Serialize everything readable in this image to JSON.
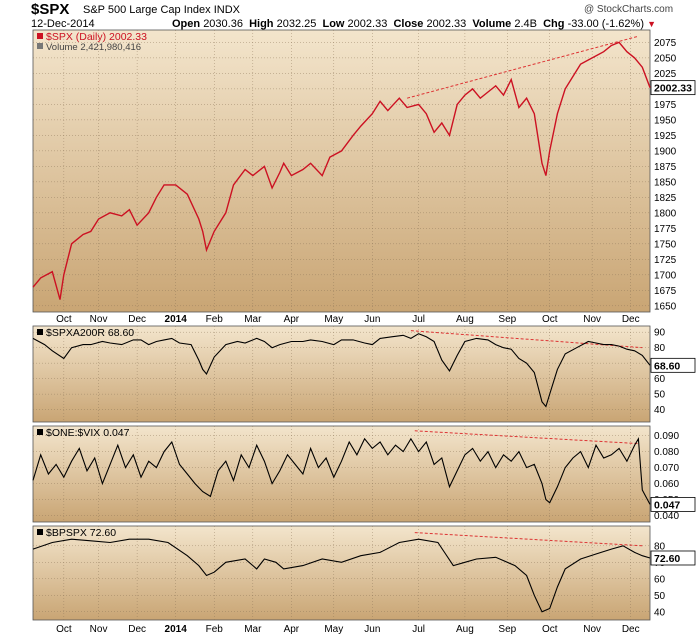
{
  "header": {
    "symbol": "$SPX",
    "name": "S&P 500 Large Cap Index",
    "exchange": "INDX",
    "date": "12-Dec-2014",
    "open_label": "Open",
    "open": "2030.36",
    "high_label": "High",
    "high": "2032.25",
    "low_label": "Low",
    "low": "2002.33",
    "close_label": "Close",
    "close": "2002.33",
    "volume_label": "Volume",
    "volume": "2.4B",
    "chg_label": "Chg",
    "chg": "-33.00 (-1.62%)",
    "brand": "@ StockCharts.com"
  },
  "colors": {
    "panel_bg_top": "#f3e5cc",
    "panel_bg_bottom": "#c9a574",
    "price_line": "#cc1122",
    "indicator_line": "#000000",
    "trendline": "#dd3333",
    "vol_up": "#e8a9a9",
    "vol_down": "#a8a8a8"
  },
  "chart_data": [
    {
      "type": "line",
      "title": "$SPX (Daily) 2002.33",
      "legend": "Volume 2,421,980,416",
      "x_labels": [
        "Oct",
        "Nov",
        "Dec",
        "2014",
        "Feb",
        "Mar",
        "Apr",
        "May",
        "Jun",
        "Jul",
        "Aug",
        "Sep",
        "Oct",
        "Nov",
        "Dec"
      ],
      "x_positions": [
        0.08,
        0.17,
        0.27,
        0.37,
        0.47,
        0.57,
        0.67,
        0.78,
        0.88,
        1.0,
        1.12,
        1.23,
        1.34,
        1.45,
        1.55
      ],
      "ylim": [
        1640,
        2095
      ],
      "y_ticks": [
        1650,
        1675,
        1700,
        1725,
        1750,
        1775,
        1800,
        1825,
        1850,
        1875,
        1900,
        1925,
        1950,
        1975,
        2000,
        2025,
        2050,
        2075
      ],
      "last_value": "2002.33",
      "series": [
        {
          "name": "$SPX",
          "x": [
            0,
            0.02,
            0.05,
            0.07,
            0.08,
            0.1,
            0.13,
            0.15,
            0.17,
            0.2,
            0.23,
            0.25,
            0.27,
            0.3,
            0.32,
            0.34,
            0.37,
            0.4,
            0.43,
            0.44,
            0.45,
            0.47,
            0.5,
            0.52,
            0.55,
            0.57,
            0.6,
            0.62,
            0.64,
            0.65,
            0.67,
            0.7,
            0.72,
            0.75,
            0.77,
            0.8,
            0.83,
            0.85,
            0.88,
            0.9,
            0.92,
            0.95,
            0.97,
            1.0,
            1.02,
            1.04,
            1.06,
            1.08,
            1.1,
            1.12,
            1.14,
            1.16,
            1.18,
            1.2,
            1.22,
            1.24,
            1.26,
            1.28,
            1.3,
            1.32,
            1.33,
            1.34,
            1.36,
            1.38,
            1.4,
            1.42,
            1.45,
            1.48,
            1.5,
            1.52,
            1.54,
            1.56,
            1.58,
            1.6
          ],
          "y": [
            1680,
            1695,
            1705,
            1660,
            1700,
            1750,
            1765,
            1770,
            1790,
            1800,
            1795,
            1805,
            1780,
            1800,
            1825,
            1845,
            1845,
            1830,
            1790,
            1770,
            1740,
            1770,
            1800,
            1845,
            1870,
            1860,
            1875,
            1840,
            1865,
            1880,
            1860,
            1870,
            1880,
            1860,
            1890,
            1900,
            1925,
            1940,
            1960,
            1980,
            1965,
            1985,
            1970,
            1975,
            1960,
            1930,
            1945,
            1925,
            1975,
            1990,
            2000,
            1985,
            1995,
            2005,
            1990,
            2015,
            1970,
            1985,
            1960,
            1880,
            1860,
            1900,
            1960,
            2000,
            2020,
            2040,
            2050,
            2060,
            2070,
            2075,
            2060,
            2050,
            2035,
            2002
          ]
        }
      ],
      "trendline": {
        "x": [
          0.97,
          1.57
        ],
        "y": [
          1985,
          2085
        ]
      }
    },
    {
      "type": "line",
      "title": "$SPXA200R 68.60",
      "ylim": [
        32,
        94
      ],
      "y_ticks": [
        40,
        50,
        60,
        70,
        80,
        90
      ],
      "last_value": "68.60",
      "series": [
        {
          "name": "$SPXA200R",
          "x": [
            0,
            0.03,
            0.05,
            0.08,
            0.1,
            0.13,
            0.15,
            0.18,
            0.2,
            0.23,
            0.26,
            0.28,
            0.3,
            0.32,
            0.34,
            0.36,
            0.38,
            0.41,
            0.43,
            0.44,
            0.45,
            0.47,
            0.5,
            0.53,
            0.55,
            0.58,
            0.6,
            0.62,
            0.64,
            0.67,
            0.7,
            0.72,
            0.75,
            0.78,
            0.8,
            0.83,
            0.86,
            0.88,
            0.9,
            0.93,
            0.96,
            0.98,
            1.0,
            1.02,
            1.04,
            1.06,
            1.08,
            1.1,
            1.12,
            1.15,
            1.18,
            1.2,
            1.22,
            1.24,
            1.26,
            1.28,
            1.3,
            1.32,
            1.33,
            1.34,
            1.36,
            1.38,
            1.41,
            1.44,
            1.46,
            1.48,
            1.5,
            1.52,
            1.54,
            1.56,
            1.58,
            1.6
          ],
          "y": [
            86,
            82,
            78,
            73,
            80,
            82,
            82,
            84,
            83,
            82,
            85,
            85,
            82,
            84,
            85,
            86,
            83,
            82,
            72,
            66,
            63,
            74,
            82,
            84,
            83,
            86,
            84,
            80,
            82,
            84,
            84,
            85,
            84,
            82,
            85,
            85,
            83,
            82,
            86,
            87,
            88,
            86,
            89,
            87,
            84,
            72,
            65,
            75,
            84,
            86,
            85,
            82,
            80,
            79,
            73,
            70,
            64,
            45,
            42,
            50,
            66,
            76,
            80,
            84,
            83,
            82,
            82,
            81,
            79,
            78,
            75,
            68.6
          ]
        }
      ],
      "trendline": {
        "x": [
          0.98,
          1.58
        ],
        "y": [
          91,
          80
        ]
      }
    },
    {
      "type": "line",
      "title": "$ONE:$VIX 0.047",
      "ylim": [
        0.036,
        0.096
      ],
      "y_ticks": [
        0.04,
        0.05,
        0.06,
        0.07,
        0.08,
        0.09
      ],
      "y_tick_labels": [
        "0.040",
        "0.050",
        "0.060",
        "0.070",
        "0.080",
        "0.090"
      ],
      "last_value": "0.047",
      "series": [
        {
          "name": "$ONE:$VIX",
          "x": [
            0,
            0.02,
            0.04,
            0.06,
            0.08,
            0.1,
            0.12,
            0.14,
            0.16,
            0.18,
            0.2,
            0.22,
            0.24,
            0.26,
            0.28,
            0.3,
            0.32,
            0.34,
            0.36,
            0.38,
            0.4,
            0.42,
            0.44,
            0.46,
            0.48,
            0.5,
            0.52,
            0.54,
            0.56,
            0.58,
            0.6,
            0.62,
            0.64,
            0.66,
            0.68,
            0.7,
            0.72,
            0.74,
            0.76,
            0.78,
            0.8,
            0.82,
            0.84,
            0.86,
            0.88,
            0.9,
            0.92,
            0.94,
            0.96,
            0.98,
            1.0,
            1.02,
            1.04,
            1.06,
            1.08,
            1.1,
            1.12,
            1.14,
            1.16,
            1.18,
            1.2,
            1.22,
            1.24,
            1.26,
            1.28,
            1.3,
            1.32,
            1.33,
            1.34,
            1.36,
            1.38,
            1.4,
            1.42,
            1.44,
            1.46,
            1.48,
            1.5,
            1.52,
            1.54,
            1.56,
            1.57,
            1.58,
            1.6
          ],
          "y": [
            0.062,
            0.078,
            0.066,
            0.072,
            0.064,
            0.074,
            0.082,
            0.068,
            0.076,
            0.06,
            0.072,
            0.084,
            0.07,
            0.078,
            0.064,
            0.074,
            0.07,
            0.08,
            0.086,
            0.072,
            0.066,
            0.06,
            0.055,
            0.052,
            0.068,
            0.074,
            0.062,
            0.078,
            0.07,
            0.084,
            0.074,
            0.06,
            0.068,
            0.078,
            0.072,
            0.066,
            0.082,
            0.07,
            0.076,
            0.064,
            0.074,
            0.086,
            0.078,
            0.088,
            0.082,
            0.086,
            0.078,
            0.084,
            0.08,
            0.088,
            0.08,
            0.086,
            0.072,
            0.076,
            0.058,
            0.068,
            0.078,
            0.082,
            0.074,
            0.08,
            0.07,
            0.078,
            0.074,
            0.08,
            0.07,
            0.072,
            0.06,
            0.05,
            0.048,
            0.058,
            0.07,
            0.076,
            0.08,
            0.07,
            0.084,
            0.076,
            0.078,
            0.082,
            0.074,
            0.084,
            0.088,
            0.056,
            0.047
          ]
        }
      ],
      "trendline": {
        "x": [
          0.99,
          1.57
        ],
        "y": [
          0.093,
          0.085
        ]
      }
    },
    {
      "type": "line",
      "title": "$BPSPX 72.60",
      "ylim": [
        35,
        92
      ],
      "y_ticks": [
        40,
        50,
        60,
        70,
        80
      ],
      "last_value": "72.60",
      "series": [
        {
          "name": "$BPSPX",
          "x": [
            0,
            0.05,
            0.1,
            0.15,
            0.2,
            0.25,
            0.3,
            0.35,
            0.4,
            0.43,
            0.45,
            0.47,
            0.5,
            0.55,
            0.58,
            0.6,
            0.63,
            0.65,
            0.7,
            0.75,
            0.8,
            0.85,
            0.9,
            0.95,
            1.0,
            1.05,
            1.07,
            1.09,
            1.12,
            1.15,
            1.2,
            1.25,
            1.28,
            1.3,
            1.32,
            1.34,
            1.36,
            1.38,
            1.42,
            1.46,
            1.5,
            1.53,
            1.56,
            1.58,
            1.6
          ],
          "y": [
            78,
            82,
            84,
            83,
            82,
            84,
            84,
            82,
            74,
            68,
            62,
            64,
            70,
            72,
            66,
            72,
            70,
            66,
            68,
            72,
            70,
            74,
            76,
            82,
            84,
            82,
            75,
            68,
            70,
            72,
            73,
            68,
            62,
            50,
            40,
            42,
            55,
            66,
            72,
            75,
            78,
            80,
            76,
            74,
            72.6
          ]
        }
      ],
      "trendline": {
        "x": [
          0.99,
          1.58
        ],
        "y": [
          88,
          80
        ]
      }
    }
  ]
}
